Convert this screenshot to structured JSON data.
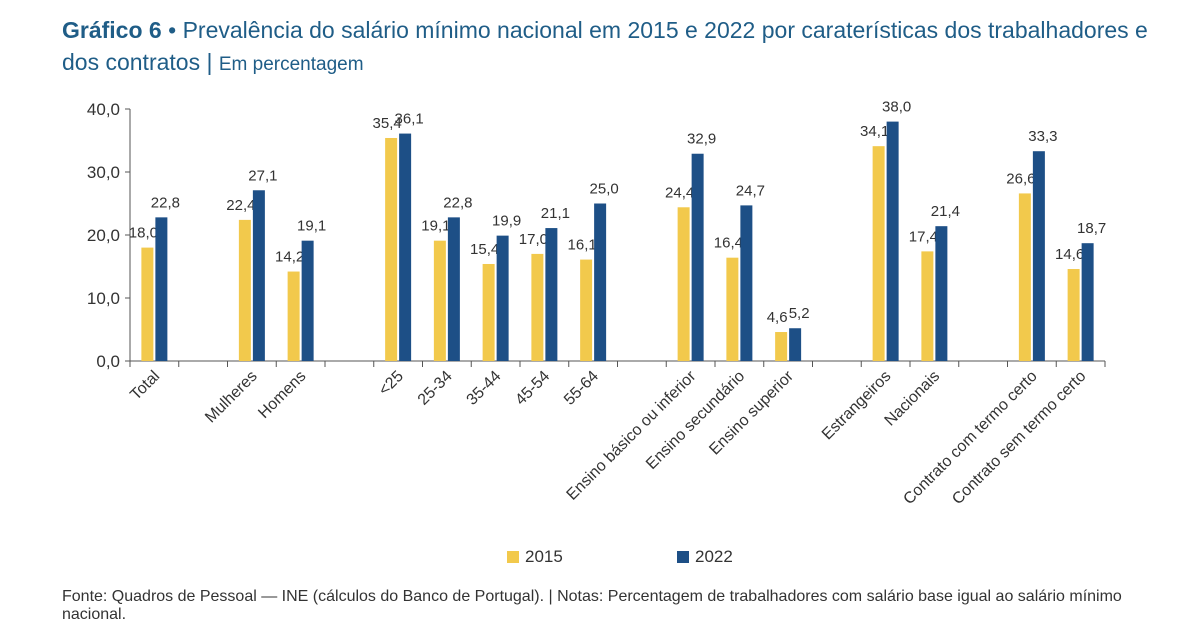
{
  "title": {
    "label": "Gráfico 6",
    "bullet": "•",
    "text": "Prevalência do salário mínimo nacional em 2015 e 2022 por caraterísticas dos trabalhadores e dos contratos",
    "separator": "|",
    "units": "Em percentagem"
  },
  "colors": {
    "s2015": "#f2c94c",
    "s2022": "#1d4f86",
    "axis": "#555555",
    "text": "#333333"
  },
  "footer": "Fonte: Quadros de Pessoal — INE (cálculos do Banco de Portugal).  |  Notas: Percentagem de trabalhadores com salário base igual ao salário mínimo nacional.",
  "chart_data": {
    "type": "bar",
    "title": "Prevalência do salário mínimo nacional em 2015 e 2022 por caraterísticas dos trabalhadores e dos contratos",
    "ylabel": "Em percentagem",
    "xlabel": "",
    "ylim": [
      0,
      40
    ],
    "yticks": [
      0,
      10,
      20,
      30,
      40
    ],
    "ytick_labels": [
      "0,0",
      "10,0",
      "20,0",
      "30,0",
      "40,0"
    ],
    "categories": [
      "Total",
      "",
      "Mulheres",
      "Homens",
      "",
      "<25",
      "25-34",
      "35-44",
      "45-54",
      "55-64",
      "",
      "Ensino básico ou inferior",
      "Ensino secundário",
      "Ensino superior",
      "",
      "Estrangeiros",
      "Nacionais",
      "",
      "Contrato com termo certo",
      "Contrato sem termo certo"
    ],
    "series": [
      {
        "name": "2015",
        "values": [
          18.0,
          null,
          22.4,
          14.2,
          null,
          35.4,
          19.1,
          15.4,
          17.0,
          16.1,
          null,
          24.4,
          16.4,
          4.6,
          null,
          34.1,
          17.4,
          null,
          26.6,
          14.6
        ],
        "labels": [
          "18,0",
          "",
          "22,4",
          "14,2",
          "",
          "35,4",
          "19,1",
          "15,4",
          "17,0",
          "16,1",
          "",
          "24,4",
          "16,4",
          "4,6",
          "",
          "34,1",
          "17,4",
          "",
          "26,6",
          "14,6"
        ]
      },
      {
        "name": "2022",
        "values": [
          22.8,
          null,
          27.1,
          19.1,
          null,
          36.1,
          22.8,
          19.9,
          21.1,
          25.0,
          null,
          32.9,
          24.7,
          5.2,
          null,
          38.0,
          21.4,
          null,
          33.3,
          18.7
        ],
        "labels": [
          "22,8",
          "",
          "27,1",
          "19,1",
          "",
          "36,1",
          "22,8",
          "19,9",
          "21,1",
          "25,0",
          "",
          "32,9",
          "24,7",
          "5,2",
          "",
          "38,0",
          "21,4",
          "",
          "33,3",
          "18,7"
        ]
      }
    ],
    "legend_position": "bottom-center",
    "grid": false
  }
}
